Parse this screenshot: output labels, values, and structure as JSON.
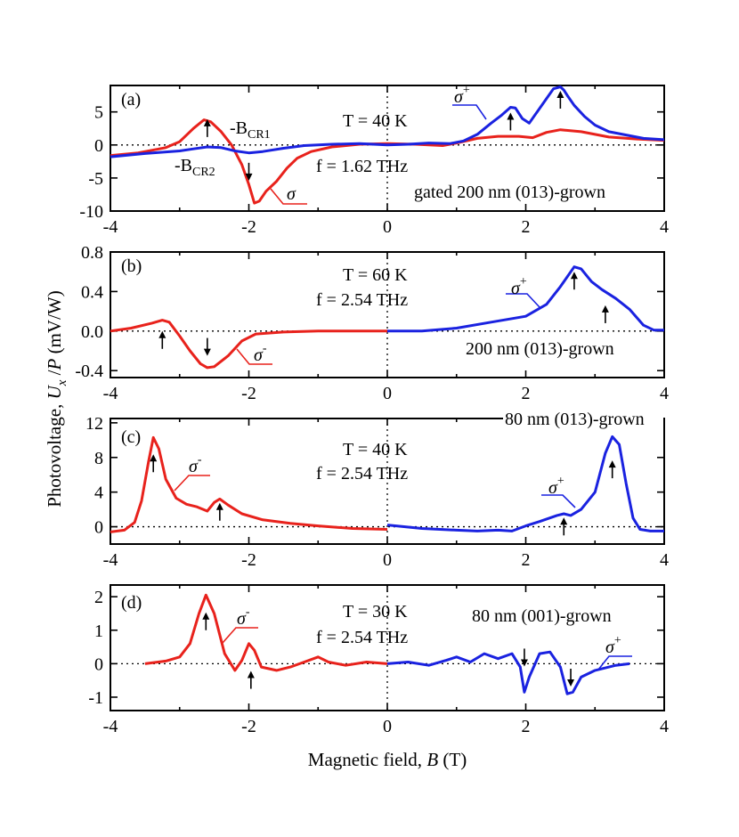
{
  "colors": {
    "sigma_minus": "#e8221c",
    "sigma_plus": "#1a22e0"
  },
  "axes": {
    "xlabel": "Magnetic field, B (T)",
    "ylabel": "Photovoltage, U_x /P (mV/W)"
  },
  "chart_data": [
    {
      "type": "line",
      "panel": "(a)",
      "xlim": [
        -4,
        4
      ],
      "ylim": [
        -10,
        9
      ],
      "xticks": [
        "-4",
        "-2",
        "0",
        "2",
        "4"
      ],
      "yticks": [
        {
          "v": 5,
          "label": "5"
        },
        {
          "v": 0,
          "label": "0"
        },
        {
          "v": -5,
          "label": "-5"
        },
        {
          "v": -10,
          "label": "-10"
        }
      ],
      "annotations": [
        "T = 40 K",
        "f = 1.62 THz",
        "gated 200 nm (013)-grown",
        "-B",
        "CR1",
        "-B",
        "CR2"
      ],
      "series": [
        {
          "name": "σ",
          "color": "red",
          "points": [
            [
              -4,
              -1.6
            ],
            [
              -3.6,
              -1.2
            ],
            [
              -3.2,
              -0.4
            ],
            [
              -3.0,
              0.5
            ],
            [
              -2.8,
              2.5
            ],
            [
              -2.65,
              3.8
            ],
            [
              -2.55,
              3.5
            ],
            [
              -2.4,
              2.0
            ],
            [
              -2.25,
              0.0
            ],
            [
              -2.1,
              -3.0
            ],
            [
              -2.0,
              -6.0
            ],
            [
              -1.92,
              -8.8
            ],
            [
              -1.85,
              -8.5
            ],
            [
              -1.75,
              -7.0
            ],
            [
              -1.6,
              -5.5
            ],
            [
              -1.45,
              -3.5
            ],
            [
              -1.3,
              -2.0
            ],
            [
              -1.1,
              -1.0
            ],
            [
              -0.8,
              -0.3
            ],
            [
              -0.4,
              0.1
            ],
            [
              0,
              0.2
            ],
            [
              0.4,
              0.1
            ],
            [
              0.8,
              -0.1
            ],
            [
              1.0,
              0.3
            ],
            [
              1.3,
              1.0
            ],
            [
              1.6,
              1.3
            ],
            [
              1.9,
              1.3
            ],
            [
              2.1,
              1.1
            ],
            [
              2.3,
              1.9
            ],
            [
              2.5,
              2.3
            ],
            [
              2.8,
              2.0
            ],
            [
              3.2,
              1.2
            ],
            [
              3.6,
              0.9
            ],
            [
              4,
              0.7
            ]
          ]
        },
        {
          "name": "σ+",
          "color": "blue",
          "points": [
            [
              -4,
              -1.8
            ],
            [
              -3.5,
              -1.3
            ],
            [
              -3.0,
              -0.9
            ],
            [
              -2.8,
              -0.6
            ],
            [
              -2.6,
              -0.3
            ],
            [
              -2.4,
              -0.4
            ],
            [
              -2.2,
              -0.9
            ],
            [
              -2.0,
              -1.2
            ],
            [
              -1.8,
              -1.0
            ],
            [
              -1.5,
              -0.5
            ],
            [
              -1.2,
              -0.1
            ],
            [
              -0.8,
              0.1
            ],
            [
              -0.4,
              0.2
            ],
            [
              0,
              0
            ],
            [
              0.3,
              0.1
            ],
            [
              0.6,
              0.3
            ],
            [
              0.9,
              0.2
            ],
            [
              1.1,
              0.6
            ],
            [
              1.3,
              1.6
            ],
            [
              1.5,
              3.3
            ],
            [
              1.65,
              4.5
            ],
            [
              1.78,
              5.7
            ],
            [
              1.85,
              5.6
            ],
            [
              1.95,
              4.0
            ],
            [
              2.05,
              3.3
            ],
            [
              2.15,
              4.8
            ],
            [
              2.3,
              7.0
            ],
            [
              2.4,
              8.5
            ],
            [
              2.5,
              8.8
            ],
            [
              2.55,
              8.3
            ],
            [
              2.6,
              7.5
            ],
            [
              2.7,
              6.0
            ],
            [
              2.85,
              4.3
            ],
            [
              3.0,
              3.0
            ],
            [
              3.2,
              2.0
            ],
            [
              3.4,
              1.6
            ],
            [
              3.7,
              1.0
            ],
            [
              4,
              0.8
            ]
          ]
        }
      ],
      "markers": [
        {
          "x": -2.6,
          "dir": "up",
          "y0": 1.2
        },
        {
          "x": -2.0,
          "dir": "down",
          "y0": -2.7
        },
        {
          "x": 1.78,
          "dir": "up",
          "y0": 2.2
        },
        {
          "x": 2.5,
          "dir": "up",
          "y0": 5.5
        }
      ]
    },
    {
      "type": "line",
      "panel": "(b)",
      "xlim": [
        -4,
        4
      ],
      "ylim": [
        -0.47,
        0.8
      ],
      "xticks": [
        "-4",
        "-2",
        "0",
        "2",
        "4"
      ],
      "yticks": [
        {
          "v": 0.8,
          "label": "0.8"
        },
        {
          "v": 0.4,
          "label": "0.4"
        },
        {
          "v": 0.0,
          "label": "0.0"
        },
        {
          "v": -0.4,
          "label": "-0.4"
        }
      ],
      "annotations": [
        "T = 60 K",
        "f = 2.54 THz",
        "200 nm (013)-grown"
      ],
      "series": [
        {
          "name": "σ-",
          "color": "red",
          "points": [
            [
              -4,
              0.0
            ],
            [
              -3.7,
              0.03
            ],
            [
              -3.4,
              0.08
            ],
            [
              -3.25,
              0.11
            ],
            [
              -3.15,
              0.09
            ],
            [
              -3.0,
              -0.05
            ],
            [
              -2.85,
              -0.2
            ],
            [
              -2.7,
              -0.33
            ],
            [
              -2.6,
              -0.37
            ],
            [
              -2.5,
              -0.36
            ],
            [
              -2.3,
              -0.25
            ],
            [
              -2.1,
              -0.1
            ],
            [
              -1.9,
              -0.03
            ],
            [
              -1.5,
              -0.01
            ],
            [
              -1,
              0.0
            ],
            [
              0,
              0.0
            ]
          ]
        },
        {
          "name": "σ+",
          "color": "blue",
          "points": [
            [
              0,
              0.0
            ],
            [
              0.5,
              0.0
            ],
            [
              1.0,
              0.03
            ],
            [
              1.5,
              0.09
            ],
            [
              2.0,
              0.15
            ],
            [
              2.3,
              0.27
            ],
            [
              2.5,
              0.45
            ],
            [
              2.7,
              0.65
            ],
            [
              2.8,
              0.63
            ],
            [
              2.95,
              0.5
            ],
            [
              3.1,
              0.42
            ],
            [
              3.3,
              0.33
            ],
            [
              3.5,
              0.22
            ],
            [
              3.7,
              0.06
            ],
            [
              3.85,
              0.01
            ],
            [
              4,
              0.01
            ]
          ]
        }
      ],
      "markers": [
        {
          "x": -3.25,
          "dir": "up",
          "y0": -0.18
        },
        {
          "x": -2.6,
          "dir": "down",
          "y0": -0.07
        },
        {
          "x": 2.7,
          "dir": "up",
          "y0": 0.42
        },
        {
          "x": 3.15,
          "dir": "up",
          "y0": 0.08
        }
      ]
    },
    {
      "type": "line",
      "panel": "(c)",
      "xlim": [
        -4,
        4
      ],
      "ylim": [
        -2,
        12.5
      ],
      "xticks": [
        "-4",
        "-2",
        "0",
        "2",
        "4"
      ],
      "yticks": [
        {
          "v": 12,
          "label": "12"
        },
        {
          "v": 8,
          "label": "8"
        },
        {
          "v": 4,
          "label": "4"
        },
        {
          "v": 0,
          "label": "0"
        }
      ],
      "annotations": [
        "T = 40 K",
        "f = 2.54 THz",
        "80 nm (013)-grown"
      ],
      "series": [
        {
          "name": "σ-",
          "color": "red",
          "points": [
            [
              -4,
              -0.6
            ],
            [
              -3.8,
              -0.4
            ],
            [
              -3.65,
              0.5
            ],
            [
              -3.55,
              3.0
            ],
            [
              -3.45,
              7.5
            ],
            [
              -3.38,
              10.3
            ],
            [
              -3.3,
              9.0
            ],
            [
              -3.2,
              5.5
            ],
            [
              -3.05,
              3.3
            ],
            [
              -2.9,
              2.6
            ],
            [
              -2.75,
              2.3
            ],
            [
              -2.6,
              1.8
            ],
            [
              -2.5,
              2.8
            ],
            [
              -2.42,
              3.2
            ],
            [
              -2.3,
              2.5
            ],
            [
              -2.1,
              1.5
            ],
            [
              -1.8,
              0.8
            ],
            [
              -1.4,
              0.4
            ],
            [
              -1,
              0.1
            ],
            [
              -0.5,
              -0.2
            ],
            [
              0,
              -0.3
            ]
          ]
        },
        {
          "name": "σ+",
          "color": "blue",
          "points": [
            [
              0,
              0.2
            ],
            [
              0.5,
              -0.2
            ],
            [
              1.0,
              -0.4
            ],
            [
              1.3,
              -0.5
            ],
            [
              1.6,
              -0.4
            ],
            [
              1.8,
              -0.5
            ],
            [
              2.0,
              0.1
            ],
            [
              2.2,
              0.6
            ],
            [
              2.45,
              1.3
            ],
            [
              2.55,
              1.5
            ],
            [
              2.65,
              1.3
            ],
            [
              2.8,
              2.0
            ],
            [
              3.0,
              4.0
            ],
            [
              3.15,
              8.5
            ],
            [
              3.25,
              10.4
            ],
            [
              3.35,
              9.5
            ],
            [
              3.45,
              5.0
            ],
            [
              3.55,
              1.0
            ],
            [
              3.65,
              -0.3
            ],
            [
              3.8,
              -0.5
            ],
            [
              4,
              -0.5
            ]
          ]
        }
      ],
      "markers": [
        {
          "x": -3.38,
          "dir": "up",
          "y0": 6.3
        },
        {
          "x": -2.42,
          "dir": "up",
          "y0": 0.7
        },
        {
          "x": 2.55,
          "dir": "up",
          "y0": -1.0
        },
        {
          "x": 3.25,
          "dir": "up",
          "y0": 5.6
        }
      ]
    },
    {
      "type": "line",
      "panel": "(d)",
      "xlim": [
        -4,
        4
      ],
      "ylim": [
        -1.4,
        2.35
      ],
      "xticks": [
        "-4",
        "-2",
        "0",
        "2",
        "4"
      ],
      "yticks": [
        {
          "v": 2,
          "label": "2"
        },
        {
          "v": 1,
          "label": "1"
        },
        {
          "v": 0,
          "label": "0"
        },
        {
          "v": -1,
          "label": "-1"
        }
      ],
      "annotations": [
        "T = 30 K",
        "f = 2.54 THz",
        "80 nm (001)-grown"
      ],
      "series": [
        {
          "name": "σ-",
          "color": "red",
          "points": [
            [
              -3.5,
              0.0
            ],
            [
              -3.2,
              0.08
            ],
            [
              -3.0,
              0.2
            ],
            [
              -2.85,
              0.6
            ],
            [
              -2.72,
              1.5
            ],
            [
              -2.62,
              2.05
            ],
            [
              -2.5,
              1.5
            ],
            [
              -2.35,
              0.3
            ],
            [
              -2.2,
              -0.2
            ],
            [
              -2.1,
              0.1
            ],
            [
              -2.0,
              0.6
            ],
            [
              -1.92,
              0.4
            ],
            [
              -1.82,
              -0.1
            ],
            [
              -1.6,
              -0.2
            ],
            [
              -1.4,
              -0.1
            ],
            [
              -1.2,
              0.05
            ],
            [
              -1.0,
              0.2
            ],
            [
              -0.85,
              0.05
            ],
            [
              -0.6,
              -0.05
            ],
            [
              -0.3,
              0.05
            ],
            [
              0,
              0.0
            ]
          ]
        },
        {
          "name": "σ+",
          "color": "blue",
          "points": [
            [
              0,
              0.0
            ],
            [
              0.3,
              0.05
            ],
            [
              0.6,
              -0.05
            ],
            [
              0.85,
              0.1
            ],
            [
              1.0,
              0.2
            ],
            [
              1.2,
              0.05
            ],
            [
              1.4,
              0.3
            ],
            [
              1.6,
              0.15
            ],
            [
              1.8,
              0.3
            ],
            [
              1.92,
              -0.1
            ],
            [
              1.98,
              -0.85
            ],
            [
              2.05,
              -0.4
            ],
            [
              2.2,
              0.3
            ],
            [
              2.35,
              0.35
            ],
            [
              2.5,
              -0.1
            ],
            [
              2.6,
              -0.9
            ],
            [
              2.68,
              -0.85
            ],
            [
              2.8,
              -0.4
            ],
            [
              3.0,
              -0.2
            ],
            [
              3.3,
              -0.05
            ],
            [
              3.5,
              0.0
            ]
          ]
        }
      ],
      "markers": [
        {
          "x": -2.62,
          "dir": "up",
          "y0": 1.0
        },
        {
          "x": -1.97,
          "dir": "up",
          "y0": -0.75
        },
        {
          "x": 1.98,
          "dir": "down",
          "y0": 0.45
        },
        {
          "x": 2.65,
          "dir": "down",
          "y0": -0.15
        }
      ]
    }
  ]
}
